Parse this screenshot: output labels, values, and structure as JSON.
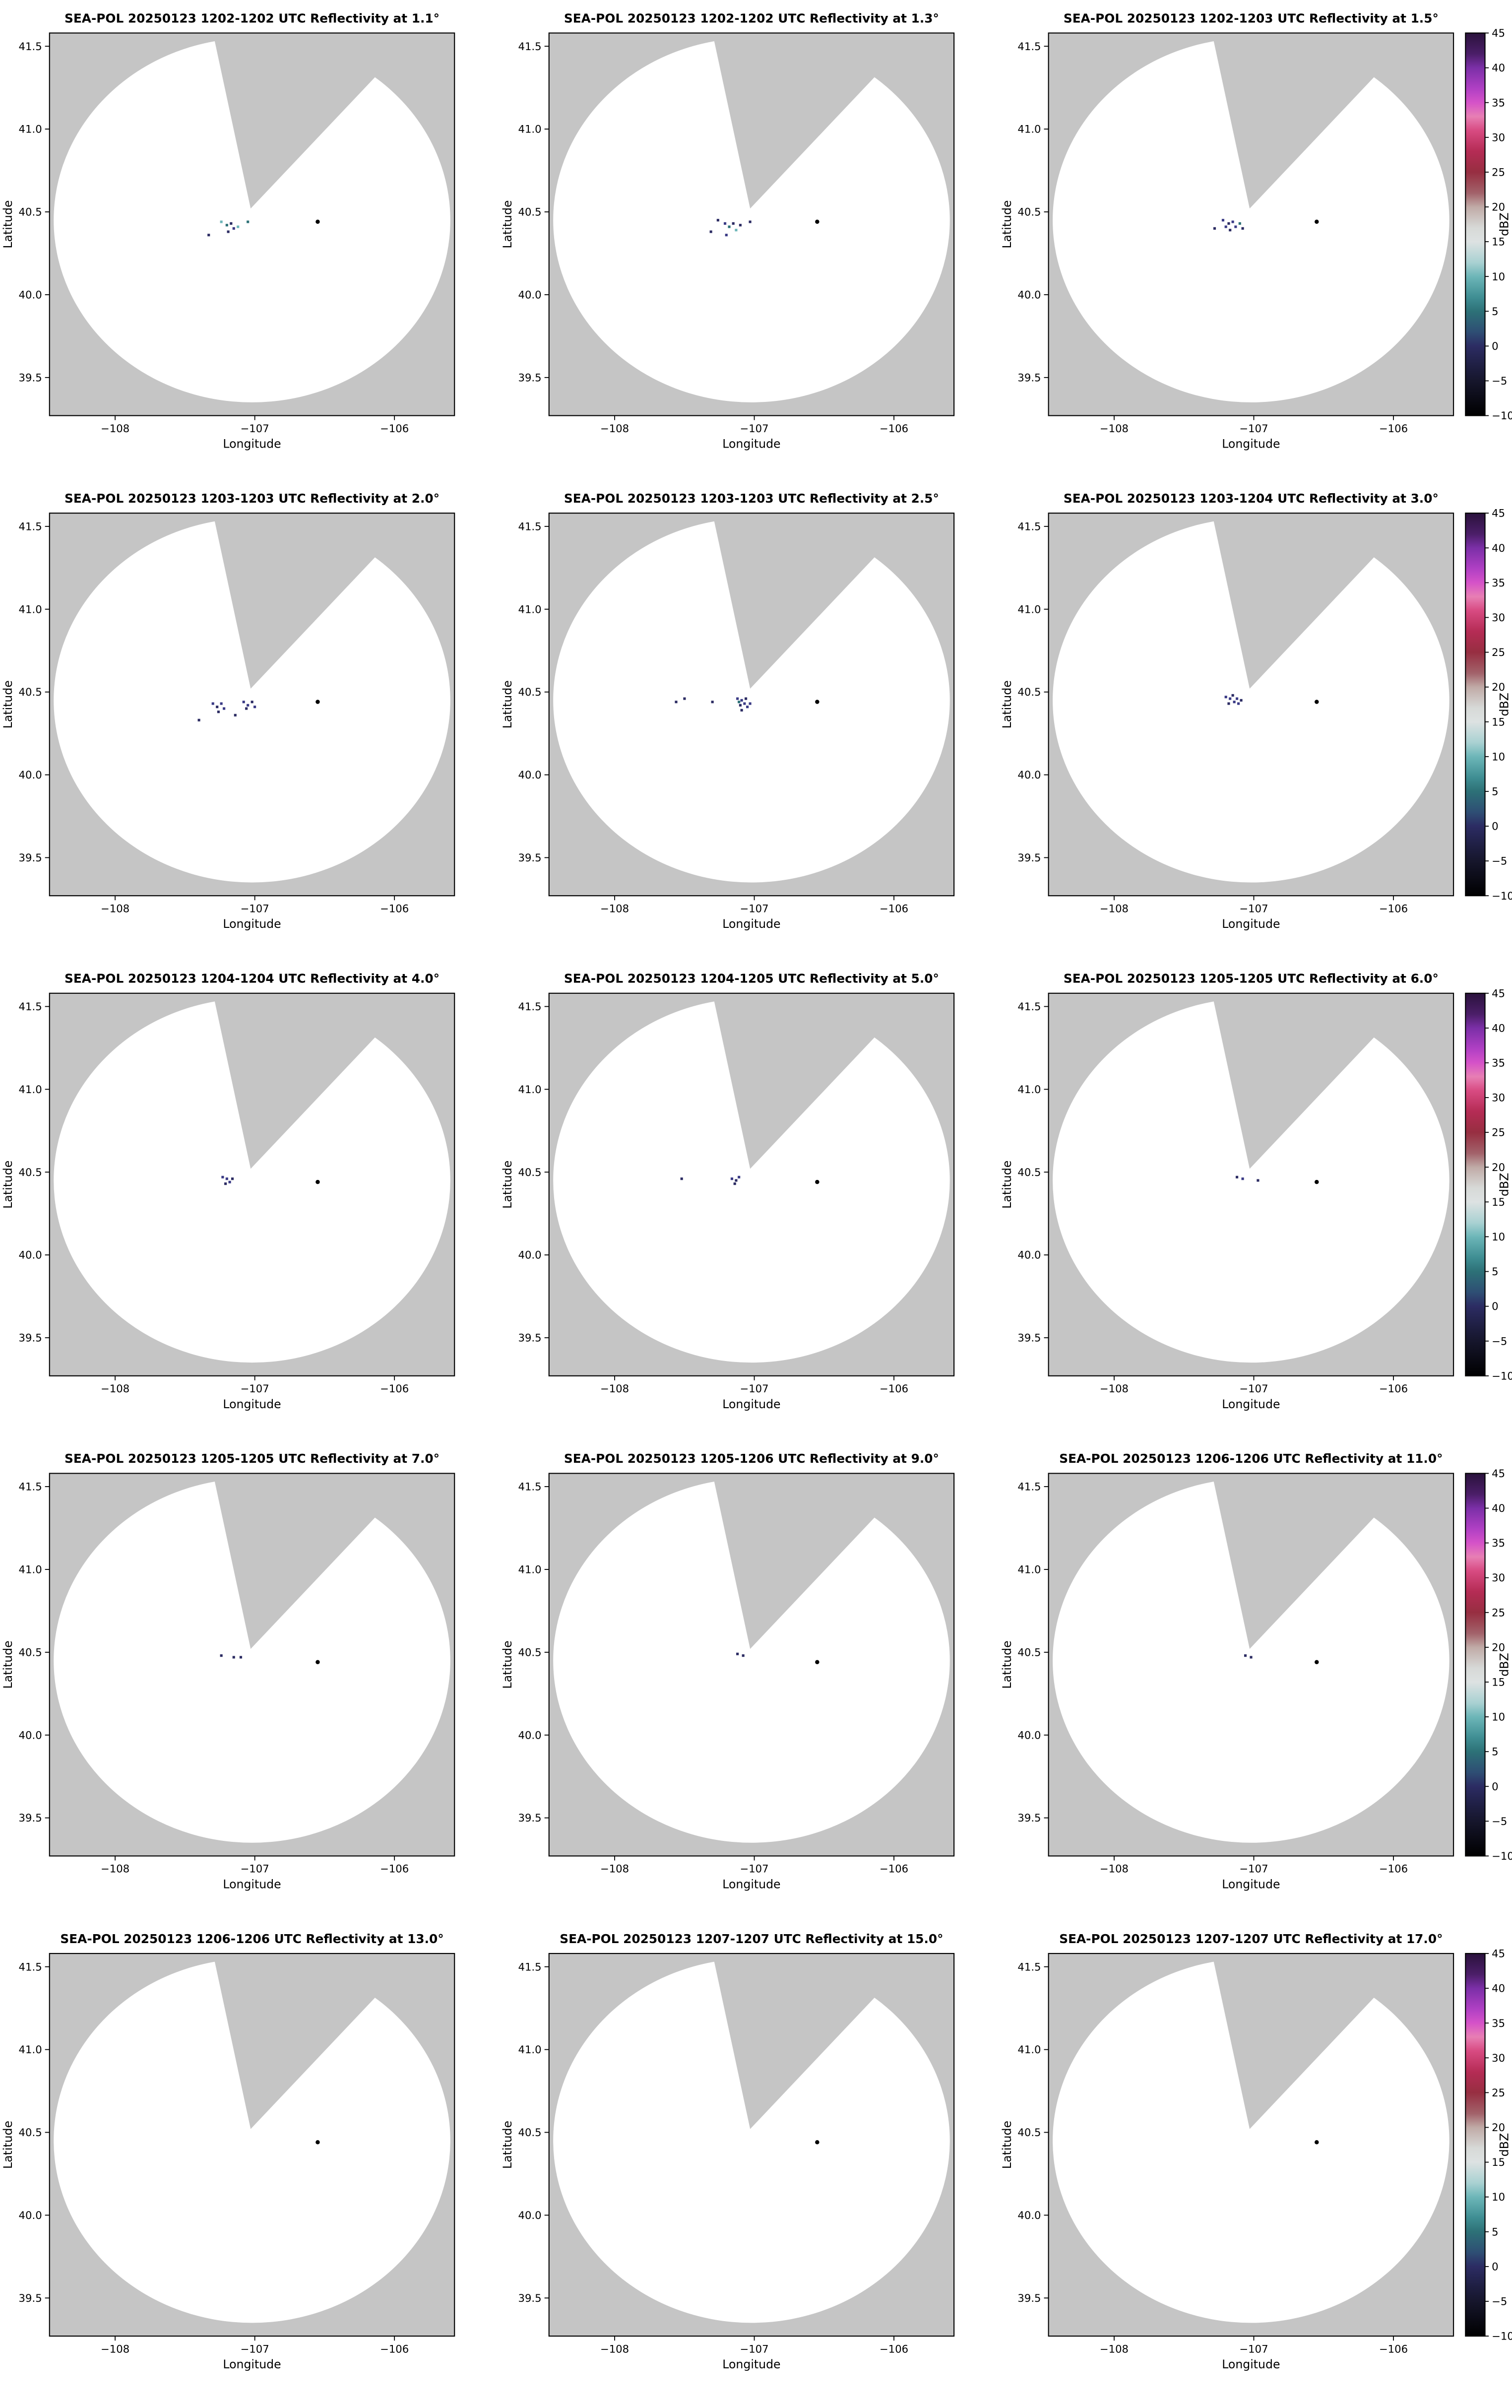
{
  "figure": {
    "xlabel": "Longitude",
    "ylabel": "Latitude",
    "colorbar_label": "dBZ",
    "colors": {
      "background": "#ffffff",
      "no_data_gray": "#c5c5c5",
      "coverage_white": "#ffffff",
      "axis": "#000000",
      "site_marker": "#000000"
    },
    "xlim": [
      -108.47,
      -105.57
    ],
    "ylim": [
      39.27,
      41.58
    ],
    "xticks": [
      {
        "v": -108,
        "label": "−108"
      },
      {
        "v": -107,
        "label": "−107"
      },
      {
        "v": -106,
        "label": "−106"
      }
    ],
    "yticks": [
      {
        "v": 39.5,
        "label": "39.5"
      },
      {
        "v": 40.0,
        "label": "40.0"
      },
      {
        "v": 40.5,
        "label": "40.5"
      },
      {
        "v": 41.0,
        "label": "41.0"
      },
      {
        "v": 41.5,
        "label": "41.5"
      }
    ],
    "radar_coverage": {
      "center_lon": -107.02,
      "center_lat": 40.45,
      "radius_lon_deg": 1.42,
      "radius_lat_deg": 1.1
    },
    "blocked_sector": [
      [
        -107.03,
        40.52
      ],
      [
        -107.32,
        41.66
      ],
      [
        -105.75,
        41.66
      ]
    ],
    "site_marker": {
      "lon": -106.55,
      "lat": 40.44
    },
    "colorbar": {
      "min": -10,
      "max": 45,
      "ticks": [
        {
          "v": 45,
          "label": "45"
        },
        {
          "v": 40,
          "label": "40"
        },
        {
          "v": 35,
          "label": "35"
        },
        {
          "v": 30,
          "label": "30"
        },
        {
          "v": 25,
          "label": "25"
        },
        {
          "v": 20,
          "label": "20"
        },
        {
          "v": 15,
          "label": "15"
        },
        {
          "v": 10,
          "label": "10"
        },
        {
          "v": 5,
          "label": "5"
        },
        {
          "v": 0,
          "label": "0"
        },
        {
          "v": -5,
          "label": "−5"
        },
        {
          "v": -10,
          "label": "−10"
        }
      ],
      "stops": [
        {
          "v": 45,
          "c": "#2a123c"
        },
        {
          "v": 42,
          "c": "#4b1e68"
        },
        {
          "v": 40,
          "c": "#7b2fa7"
        },
        {
          "v": 37,
          "c": "#b040c4"
        },
        {
          "v": 35,
          "c": "#d552c8"
        },
        {
          "v": 33,
          "c": "#e77fb4"
        },
        {
          "v": 31,
          "c": "#d84b82"
        },
        {
          "v": 28,
          "c": "#b52c55"
        },
        {
          "v": 25,
          "c": "#972e41"
        },
        {
          "v": 22,
          "c": "#a2626a"
        },
        {
          "v": 20,
          "c": "#c0aaa6"
        },
        {
          "v": 17,
          "c": "#d7d9d7"
        },
        {
          "v": 15,
          "c": "#dde2e2"
        },
        {
          "v": 12,
          "c": "#a9d1d2"
        },
        {
          "v": 10,
          "c": "#6db6b8"
        },
        {
          "v": 7,
          "c": "#3f8e93"
        },
        {
          "v": 5,
          "c": "#2d7177"
        },
        {
          "v": 2,
          "c": "#2e4e74"
        },
        {
          "v": 0,
          "c": "#2c2c63"
        },
        {
          "v": -3,
          "c": "#1e1e41"
        },
        {
          "v": -5,
          "c": "#16162c"
        },
        {
          "v": -10,
          "c": "#000000"
        }
      ]
    }
  },
  "chart_data": [
    {
      "type": "scatter",
      "title": "SEA-POL 20250123 1202-1202 UTC Reflectivity at 1.1°",
      "time_utc": "1202-1202",
      "elevation_deg": 1.1,
      "xlabel": "Longitude",
      "ylabel": "Latitude",
      "points": [
        {
          "lon": -107.24,
          "lat": 40.44,
          "dbz": 10,
          "color": "#6db6b8"
        },
        {
          "lon": -107.2,
          "lat": 40.42,
          "dbz": 5,
          "color": "#2d7177"
        },
        {
          "lon": -107.17,
          "lat": 40.43,
          "dbz": 0,
          "color": "#2c2c63"
        },
        {
          "lon": -107.15,
          "lat": 40.4,
          "dbz": 3,
          "color": "#3a3a85"
        },
        {
          "lon": -107.19,
          "lat": 40.38,
          "dbz": 0,
          "color": "#2c2c63"
        },
        {
          "lon": -107.12,
          "lat": 40.41,
          "dbz": 10,
          "color": "#6db6b8"
        },
        {
          "lon": -107.33,
          "lat": 40.36,
          "dbz": 0,
          "color": "#2c2c63"
        },
        {
          "lon": -107.05,
          "lat": 40.44,
          "dbz": 5,
          "color": "#2d7177"
        }
      ]
    },
    {
      "type": "scatter",
      "title": "SEA-POL 20250123 1202-1202 UTC Reflectivity at 1.3°",
      "time_utc": "1202-1202",
      "elevation_deg": 1.3,
      "xlabel": "Longitude",
      "ylabel": "Latitude",
      "points": [
        {
          "lon": -107.26,
          "lat": 40.45,
          "dbz": 0,
          "color": "#2c2c63"
        },
        {
          "lon": -107.21,
          "lat": 40.43,
          "dbz": 3,
          "color": "#3a3a85"
        },
        {
          "lon": -107.18,
          "lat": 40.41,
          "dbz": 5,
          "color": "#2d7177"
        },
        {
          "lon": -107.15,
          "lat": 40.43,
          "dbz": 0,
          "color": "#2c2c63"
        },
        {
          "lon": -107.13,
          "lat": 40.39,
          "dbz": 10,
          "color": "#6db6b8"
        },
        {
          "lon": -107.1,
          "lat": 40.42,
          "dbz": 0,
          "color": "#2c2c63"
        },
        {
          "lon": -107.2,
          "lat": 40.36,
          "dbz": 3,
          "color": "#3a3a85"
        },
        {
          "lon": -107.31,
          "lat": 40.38,
          "dbz": 0,
          "color": "#2c2c63"
        },
        {
          "lon": -107.03,
          "lat": 40.44,
          "dbz": 0,
          "color": "#2c2c63"
        }
      ]
    },
    {
      "type": "scatter",
      "title": "SEA-POL 20250123 1202-1203 UTC Reflectivity at 1.5°",
      "time_utc": "1202-1203",
      "elevation_deg": 1.5,
      "xlabel": "Longitude",
      "ylabel": "Latitude",
      "points": [
        {
          "lon": -107.22,
          "lat": 40.45,
          "dbz": 3,
          "color": "#3a3a85"
        },
        {
          "lon": -107.18,
          "lat": 40.43,
          "dbz": 0,
          "color": "#2c2c63"
        },
        {
          "lon": -107.15,
          "lat": 40.44,
          "dbz": 3,
          "color": "#3a3a85"
        },
        {
          "lon": -107.13,
          "lat": 40.41,
          "dbz": 3,
          "color": "#3a3a85"
        },
        {
          "lon": -107.17,
          "lat": 40.39,
          "dbz": 0,
          "color": "#2c2c63"
        },
        {
          "lon": -107.1,
          "lat": 40.43,
          "dbz": 5,
          "color": "#2d7177"
        },
        {
          "lon": -107.08,
          "lat": 40.4,
          "dbz": 0,
          "color": "#2c2c63"
        },
        {
          "lon": -107.28,
          "lat": 40.4,
          "dbz": 0,
          "color": "#2c2c63"
        },
        {
          "lon": -107.2,
          "lat": 40.41,
          "dbz": 3,
          "color": "#3a3a85"
        }
      ]
    },
    {
      "type": "scatter",
      "title": "SEA-POL 20250123 1203-1203 UTC Reflectivity at 2.0°",
      "time_utc": "1203-1203",
      "elevation_deg": 2.0,
      "xlabel": "Longitude",
      "ylabel": "Latitude",
      "points": [
        {
          "lon": -107.3,
          "lat": 40.43,
          "dbz": 3,
          "color": "#3a3a85"
        },
        {
          "lon": -107.27,
          "lat": 40.41,
          "dbz": 0,
          "color": "#2c2c63"
        },
        {
          "lon": -107.24,
          "lat": 40.43,
          "dbz": 3,
          "color": "#3a3a85"
        },
        {
          "lon": -107.26,
          "lat": 40.38,
          "dbz": 0,
          "color": "#2c2c63"
        },
        {
          "lon": -107.22,
          "lat": 40.4,
          "dbz": 3,
          "color": "#3a3a85"
        },
        {
          "lon": -107.08,
          "lat": 40.44,
          "dbz": 3,
          "color": "#3a3a85"
        },
        {
          "lon": -107.05,
          "lat": 40.42,
          "dbz": 3,
          "color": "#3a3a85"
        },
        {
          "lon": -107.02,
          "lat": 40.44,
          "dbz": 0,
          "color": "#2c2c63"
        },
        {
          "lon": -107.06,
          "lat": 40.4,
          "dbz": 0,
          "color": "#2c2c63"
        },
        {
          "lon": -107.0,
          "lat": 40.41,
          "dbz": 3,
          "color": "#3a3a85"
        },
        {
          "lon": -107.4,
          "lat": 40.33,
          "dbz": 0,
          "color": "#2c2c63"
        },
        {
          "lon": -107.14,
          "lat": 40.36,
          "dbz": 0,
          "color": "#2c2c63"
        }
      ]
    },
    {
      "type": "scatter",
      "title": "SEA-POL 20250123 1203-1203 UTC Reflectivity at 2.5°",
      "time_utc": "1203-1203",
      "elevation_deg": 2.5,
      "xlabel": "Longitude",
      "ylabel": "Latitude",
      "points": [
        {
          "lon": -107.12,
          "lat": 40.46,
          "dbz": 3,
          "color": "#3a3a85"
        },
        {
          "lon": -107.09,
          "lat": 40.45,
          "dbz": 3,
          "color": "#3a3a85"
        },
        {
          "lon": -107.07,
          "lat": 40.43,
          "dbz": 3,
          "color": "#3a3a85"
        },
        {
          "lon": -107.1,
          "lat": 40.42,
          "dbz": 0,
          "color": "#2c2c63"
        },
        {
          "lon": -107.06,
          "lat": 40.46,
          "dbz": 0,
          "color": "#2c2c63"
        },
        {
          "lon": -107.05,
          "lat": 40.41,
          "dbz": 3,
          "color": "#3a3a85"
        },
        {
          "lon": -107.09,
          "lat": 40.39,
          "dbz": 0,
          "color": "#2c2c63"
        },
        {
          "lon": -107.03,
          "lat": 40.43,
          "dbz": 3,
          "color": "#3a3a85"
        },
        {
          "lon": -107.11,
          "lat": 40.44,
          "dbz": 5,
          "color": "#2d7177"
        },
        {
          "lon": -107.5,
          "lat": 40.46,
          "dbz": 0,
          "color": "#2c2c63"
        },
        {
          "lon": -107.56,
          "lat": 40.44,
          "dbz": 0,
          "color": "#2c2c63"
        },
        {
          "lon": -107.3,
          "lat": 40.44,
          "dbz": 0,
          "color": "#2c2c63"
        }
      ]
    },
    {
      "type": "scatter",
      "title": "SEA-POL 20250123 1203-1204 UTC Reflectivity at 3.0°",
      "time_utc": "1203-1204",
      "elevation_deg": 3.0,
      "xlabel": "Longitude",
      "ylabel": "Latitude",
      "points": [
        {
          "lon": -107.2,
          "lat": 40.47,
          "dbz": 3,
          "color": "#3a3a85"
        },
        {
          "lon": -107.17,
          "lat": 40.46,
          "dbz": 3,
          "color": "#3a3a85"
        },
        {
          "lon": -107.14,
          "lat": 40.44,
          "dbz": 3,
          "color": "#3a3a85"
        },
        {
          "lon": -107.18,
          "lat": 40.43,
          "dbz": 0,
          "color": "#2c2c63"
        },
        {
          "lon": -107.12,
          "lat": 40.46,
          "dbz": 3,
          "color": "#3a3a85"
        },
        {
          "lon": -107.15,
          "lat": 40.48,
          "dbz": 0,
          "color": "#2c2c63"
        },
        {
          "lon": -107.11,
          "lat": 40.43,
          "dbz": 3,
          "color": "#3a3a85"
        },
        {
          "lon": -107.09,
          "lat": 40.45,
          "dbz": 0,
          "color": "#2c2c63"
        }
      ]
    },
    {
      "type": "scatter",
      "title": "SEA-POL 20250123 1204-1204 UTC Reflectivity at 4.0°",
      "time_utc": "1204-1204",
      "elevation_deg": 4.0,
      "xlabel": "Longitude",
      "ylabel": "Latitude",
      "points": [
        {
          "lon": -107.23,
          "lat": 40.47,
          "dbz": 3,
          "color": "#3a3a85"
        },
        {
          "lon": -107.2,
          "lat": 40.46,
          "dbz": 3,
          "color": "#3a3a85"
        },
        {
          "lon": -107.18,
          "lat": 40.44,
          "dbz": 3,
          "color": "#3a3a85"
        },
        {
          "lon": -107.21,
          "lat": 40.43,
          "dbz": 0,
          "color": "#2c2c63"
        },
        {
          "lon": -107.16,
          "lat": 40.46,
          "dbz": 0,
          "color": "#2c2c63"
        }
      ]
    },
    {
      "type": "scatter",
      "title": "SEA-POL 20250123 1204-1205 UTC Reflectivity at 5.0°",
      "time_utc": "1204-1205",
      "elevation_deg": 5.0,
      "xlabel": "Longitude",
      "ylabel": "Latitude",
      "points": [
        {
          "lon": -107.16,
          "lat": 40.46,
          "dbz": 3,
          "color": "#3a3a85"
        },
        {
          "lon": -107.13,
          "lat": 40.45,
          "dbz": 0,
          "color": "#2c2c63"
        },
        {
          "lon": -107.11,
          "lat": 40.47,
          "dbz": 3,
          "color": "#3a3a85"
        },
        {
          "lon": -107.14,
          "lat": 40.43,
          "dbz": 0,
          "color": "#2c2c63"
        },
        {
          "lon": -107.52,
          "lat": 40.46,
          "dbz": 0,
          "color": "#2c2c63"
        }
      ]
    },
    {
      "type": "scatter",
      "title": "SEA-POL 20250123 1205-1205 UTC Reflectivity at 6.0°",
      "time_utc": "1205-1205",
      "elevation_deg": 6.0,
      "xlabel": "Longitude",
      "ylabel": "Latitude",
      "points": [
        {
          "lon": -107.12,
          "lat": 40.47,
          "dbz": 0,
          "color": "#2c2c63"
        },
        {
          "lon": -107.08,
          "lat": 40.46,
          "dbz": 3,
          "color": "#3a3a85"
        },
        {
          "lon": -106.97,
          "lat": 40.45,
          "dbz": 0,
          "color": "#2c2c63"
        }
      ]
    },
    {
      "type": "scatter",
      "title": "SEA-POL 20250123 1205-1205 UTC Reflectivity at 7.0°",
      "time_utc": "1205-1205",
      "elevation_deg": 7.0,
      "xlabel": "Longitude",
      "ylabel": "Latitude",
      "points": [
        {
          "lon": -107.24,
          "lat": 40.48,
          "dbz": 0,
          "color": "#2c2c63"
        },
        {
          "lon": -107.15,
          "lat": 40.47,
          "dbz": 0,
          "color": "#2c2c63"
        },
        {
          "lon": -107.1,
          "lat": 40.47,
          "dbz": 0,
          "color": "#2c2c63"
        }
      ]
    },
    {
      "type": "scatter",
      "title": "SEA-POL 20250123 1205-1206 UTC Reflectivity at 9.0°",
      "time_utc": "1205-1206",
      "elevation_deg": 9.0,
      "xlabel": "Longitude",
      "ylabel": "Latitude",
      "points": [
        {
          "lon": -107.12,
          "lat": 40.49,
          "dbz": 0,
          "color": "#2c2c63"
        },
        {
          "lon": -107.08,
          "lat": 40.48,
          "dbz": 0,
          "color": "#2c2c63"
        }
      ]
    },
    {
      "type": "scatter",
      "title": "SEA-POL 20250123 1206-1206 UTC Reflectivity at 11.0°",
      "time_utc": "1206-1206",
      "elevation_deg": 11.0,
      "xlabel": "Longitude",
      "ylabel": "Latitude",
      "points": [
        {
          "lon": -107.06,
          "lat": 40.48,
          "dbz": 0,
          "color": "#2c2c63"
        },
        {
          "lon": -107.02,
          "lat": 40.47,
          "dbz": 0,
          "color": "#2c2c63"
        }
      ]
    },
    {
      "type": "scatter",
      "title": "SEA-POL 20250123 1206-1206 UTC Reflectivity at 13.0°",
      "time_utc": "1206-1206",
      "elevation_deg": 13.0,
      "xlabel": "Longitude",
      "ylabel": "Latitude",
      "points": []
    },
    {
      "type": "scatter",
      "title": "SEA-POL 20250123 1207-1207 UTC Reflectivity at 15.0°",
      "time_utc": "1207-1207",
      "elevation_deg": 15.0,
      "xlabel": "Longitude",
      "ylabel": "Latitude",
      "points": []
    },
    {
      "type": "scatter",
      "title": "SEA-POL 20250123 1207-1207 UTC Reflectivity at 17.0°",
      "time_utc": "1207-1207",
      "elevation_deg": 17.0,
      "xlabel": "Longitude",
      "ylabel": "Latitude",
      "points": []
    }
  ]
}
